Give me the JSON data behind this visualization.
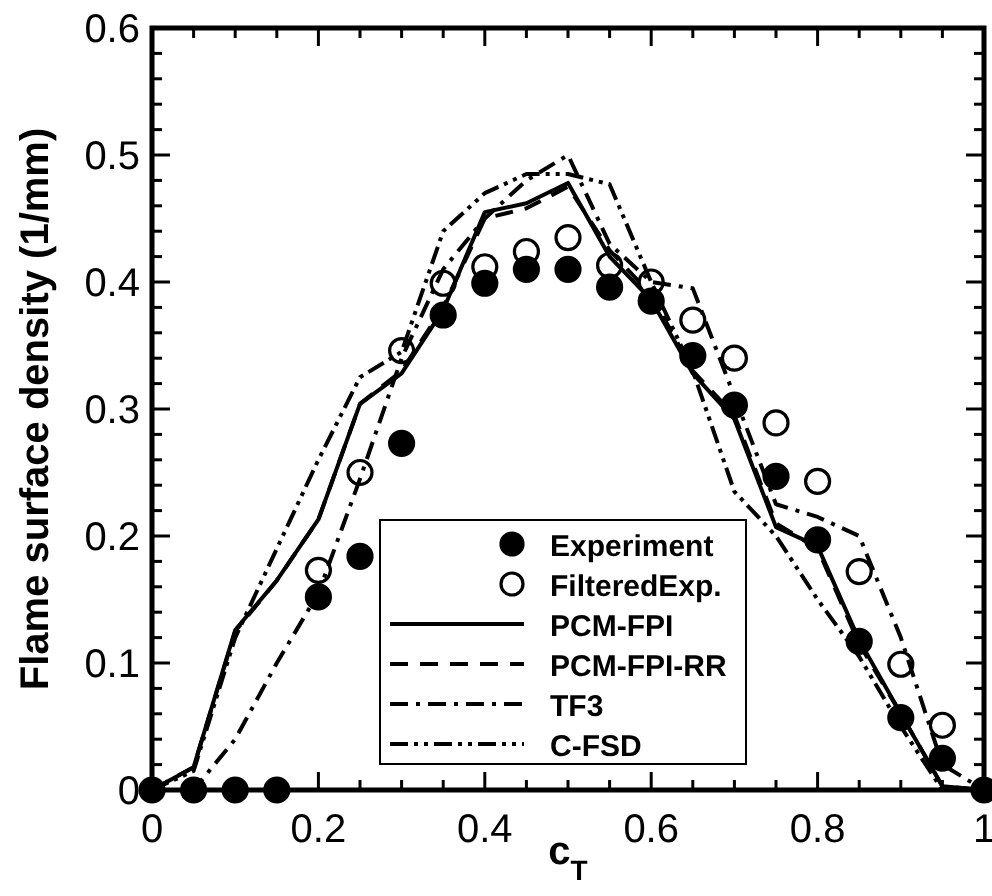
{
  "chart_data": {
    "type": "line",
    "xlabel": "c$_{T}$",
    "ylabel": "Flame surface density (1/mm)",
    "x": [
      0,
      0.05,
      0.1,
      0.15,
      0.2,
      0.25,
      0.3,
      0.35,
      0.4,
      0.45,
      0.5,
      0.55,
      0.6,
      0.65,
      0.7,
      0.75,
      0.8,
      0.85,
      0.9,
      0.95,
      1
    ],
    "xlim": [
      0,
      1
    ],
    "ylim": [
      0,
      0.6
    ],
    "xticks": [
      0,
      {
        "value": 0.05,
        "label": null
      },
      {
        "value": 0.2,
        "label": "0.2"
      },
      {
        "value": 0.1,
        "label": null
      },
      {
        "value": 0.15,
        "label": null
      },
      {
        "value": 0.25,
        "label": null
      },
      {
        "value": 0.3,
        "label": null
      },
      {
        "value": 0.35,
        "label": null
      },
      {
        "value": 0.4,
        "label": "0.4"
      },
      {
        "value": 0.45,
        "label": null
      },
      {
        "value": 0.5,
        "label": null
      },
      {
        "value": 0.55,
        "label": null
      },
      {
        "value": 0.6,
        "label": "0.6"
      },
      {
        "value": 0.65,
        "label": null
      },
      {
        "value": 0.7,
        "label": null
      },
      {
        "value": 0.75,
        "label": null
      },
      {
        "value": 0.8,
        "label": "0.8"
      },
      {
        "value": 0.85,
        "label": null
      },
      {
        "value": 0.9,
        "label": null
      },
      {
        "value": 0.95,
        "label": null
      },
      1
    ],
    "yticks": [
      0,
      {
        "value": 0.02,
        "label": null
      },
      {
        "value": 0.04,
        "label": null
      },
      {
        "value": 0.06,
        "label": null
      },
      {
        "value": 0.08,
        "label": null
      },
      {
        "value": 0.1,
        "label": "0.1"
      },
      {
        "value": 0.12,
        "label": null
      },
      {
        "value": 0.14,
        "label": null
      },
      {
        "value": 0.16,
        "label": null
      },
      {
        "value": 0.18,
        "label": null
      },
      {
        "value": 0.2,
        "label": "0.2"
      },
      {
        "value": 0.22,
        "label": null
      },
      {
        "value": 0.24,
        "label": null
      },
      {
        "value": 0.26,
        "label": null
      },
      {
        "value": 0.28,
        "label": null
      },
      {
        "value": 0.3,
        "label": "0.3"
      },
      {
        "value": 0.32,
        "label": null
      },
      {
        "value": 0.34,
        "label": null
      },
      {
        "value": 0.36,
        "label": null
      },
      {
        "value": 0.38,
        "label": null
      },
      {
        "value": 0.4,
        "label": "0.4"
      },
      {
        "value": 0.42,
        "label": null
      },
      {
        "value": 0.44,
        "label": null
      },
      {
        "value": 0.46,
        "label": null
      },
      {
        "value": 0.48,
        "label": null
      },
      {
        "value": 0.5,
        "label": "0.5"
      },
      {
        "value": 0.52,
        "label": null
      },
      {
        "value": 0.54,
        "label": null
      },
      {
        "value": 0.56,
        "label": null
      },
      {
        "value": 0.58,
        "label": null
      },
      {
        "value": 0.6,
        "label": "0.6"
      }
    ],
    "grid": false,
    "legend": "bottom",
    "series": [
      {
        "name": "Experiment",
        "type": "scatter",
        "marker": "circle",
        "color": "#000000",
        "values": [
          0,
          0,
          0,
          0,
          0.152,
          0.184,
          0.273,
          0.374,
          0.399,
          0.41,
          0.41,
          0.396,
          0.385,
          0.342,
          0.303,
          0.247,
          0.197,
          0.117,
          0.057,
          0.025,
          0
        ]
      },
      {
        "name": "FilteredExp.",
        "type": "scatter",
        "marker": "circle-open",
        "color": "#000000",
        "values": [
          null,
          null,
          null,
          null,
          0.173,
          0.25,
          0.346,
          0.399,
          0.412,
          0.424,
          0.435,
          0.413,
          0.4,
          0.37,
          0.34,
          0.289,
          0.243,
          0.172,
          0.099,
          0.051,
          null
        ]
      },
      {
        "name": "PCM-FPI",
        "line_style": "solid",
        "color": "#000000",
        "values": [
          0,
          0.018,
          0.126,
          0.165,
          0.213,
          0.304,
          0.328,
          0.378,
          0.455,
          0.462,
          0.478,
          0.42,
          0.386,
          0.328,
          0.292,
          0.207,
          0.192,
          0.118,
          0.06,
          0.003,
          0
        ]
      },
      {
        "name": "PCM-FPI-RR",
        "line_style": "dashed",
        "color": "#000000",
        "values": [
          0,
          0.018,
          0.125,
          0.165,
          0.213,
          0.304,
          0.33,
          0.38,
          0.45,
          0.458,
          0.475,
          0.425,
          0.39,
          0.33,
          0.295,
          0.21,
          0.19,
          0.115,
          0.06,
          0.003,
          0
        ]
      },
      {
        "name": "TF3",
        "line_style": "dashdot",
        "color": "#000000",
        "values": [
          0,
          0,
          0.04,
          0.1,
          0.155,
          0.245,
          0.34,
          0.41,
          0.45,
          0.48,
          0.5,
          0.43,
          0.4,
          0.395,
          0.31,
          0.225,
          0.215,
          0.2,
          0.12,
          0.02,
          0
        ]
      },
      {
        "name": "C-FSD",
        "line_style": "dashdotdot",
        "color": "#000000",
        "values": [
          0,
          0.015,
          0.12,
          0.19,
          0.26,
          0.325,
          0.345,
          0.44,
          0.47,
          0.485,
          0.485,
          0.477,
          0.4,
          0.33,
          0.235,
          0.2,
          0.15,
          0.105,
          0.05,
          0,
          0
        ]
      }
    ]
  }
}
